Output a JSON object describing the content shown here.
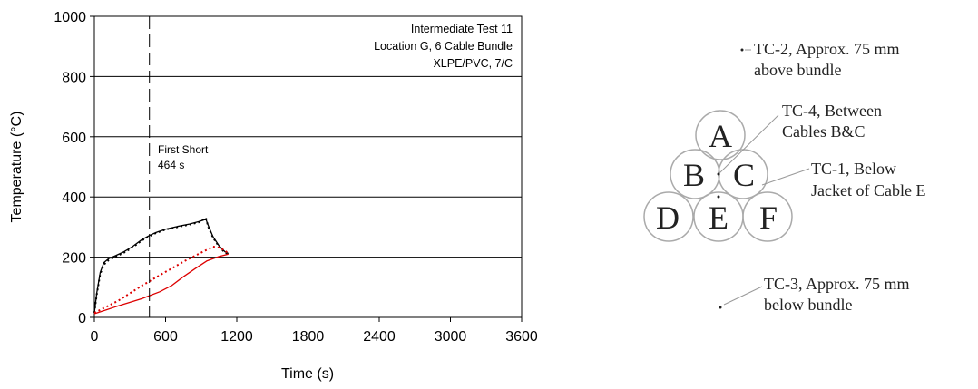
{
  "chart_data": {
    "type": "line",
    "xlabel": "Time (s)",
    "ylabel": "Temperature (°C)",
    "xlim": [
      0,
      3600
    ],
    "ylim": [
      0,
      1000
    ],
    "xticks": [
      0,
      600,
      1200,
      1800,
      2400,
      3000,
      3600
    ],
    "yticks": [
      0,
      200,
      400,
      600,
      800,
      1000
    ],
    "grid": "horizontal",
    "legend": "none",
    "annotations": {
      "title_lines": [
        "Intermediate Test 11",
        "Location G, 6 Cable Bundle",
        "XLPE/PVC, 7/C"
      ],
      "event_x": 464,
      "event_lines": [
        "First Short",
        "464 s"
      ]
    },
    "series": [
      {
        "color": "#000000",
        "dash": "solid",
        "x": [
          0,
          20,
          50,
          80,
          120,
          180,
          250,
          320,
          400,
          464,
          520,
          600,
          700,
          800,
          880,
          940,
          960,
          1000,
          1050,
          1100,
          1130
        ],
        "values": [
          15,
          80,
          150,
          182,
          195,
          205,
          218,
          235,
          258,
          272,
          282,
          293,
          302,
          310,
          318,
          326,
          305,
          268,
          238,
          218,
          212
        ]
      },
      {
        "color": "#000000",
        "dash": "dotted",
        "x": [
          0,
          20,
          50,
          80,
          120,
          180,
          250,
          320,
          400,
          464,
          520,
          600,
          700,
          800,
          880,
          940,
          960,
          1000,
          1050,
          1100,
          1130
        ],
        "values": [
          15,
          75,
          145,
          175,
          190,
          202,
          215,
          232,
          255,
          270,
          280,
          292,
          300,
          308,
          316,
          330,
          300,
          265,
          235,
          215,
          210
        ]
      },
      {
        "color": "#dd0000",
        "dash": "dotted",
        "x": [
          0,
          100,
          200,
          300,
          400,
          464,
          550,
          650,
          750,
          850,
          950,
          1000,
          1050,
          1100,
          1130
        ],
        "values": [
          15,
          35,
          55,
          80,
          105,
          120,
          140,
          162,
          185,
          205,
          225,
          235,
          232,
          222,
          212
        ]
      },
      {
        "color": "#dd0000",
        "dash": "solid",
        "x": [
          0,
          100,
          200,
          300,
          400,
          464,
          550,
          650,
          750,
          850,
          950,
          1050,
          1130
        ],
        "values": [
          12,
          25,
          38,
          50,
          62,
          72,
          85,
          105,
          135,
          162,
          188,
          202,
          210
        ]
      }
    ]
  },
  "diagram": {
    "cables": [
      "A",
      "B",
      "C",
      "D",
      "E",
      "F"
    ],
    "labels": {
      "tc2_line1": "TC-2, Approx. 75 mm",
      "tc2_line2": "above bundle",
      "tc4_line1": "TC-4, Between",
      "tc4_line2": "Cables B&C",
      "tc1_line1": "TC-1, Below",
      "tc1_line2": "Jacket of Cable E",
      "tc3_line1": "TC-3, Approx. 75 mm",
      "tc3_line2": "below bundle"
    }
  }
}
